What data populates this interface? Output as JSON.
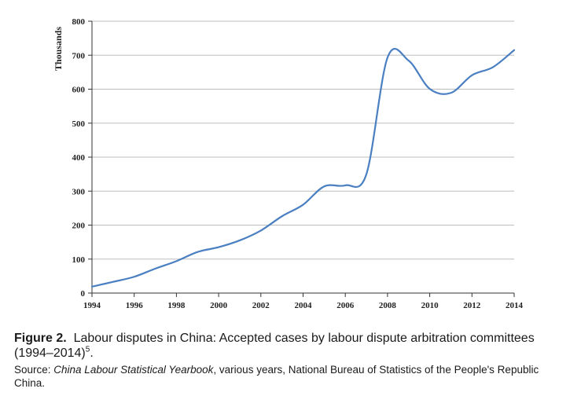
{
  "chart_data": {
    "type": "line",
    "ylabel": "Thousands",
    "xlabel": "",
    "xlim": [
      1994,
      2014
    ],
    "ylim": [
      0,
      800
    ],
    "x_ticks": [
      "1994",
      "1996",
      "1998",
      "2000",
      "2002",
      "2004",
      "2006",
      "2008",
      "2010",
      "2012",
      "2014"
    ],
    "y_ticks": [
      "0",
      "100",
      "200",
      "300",
      "400",
      "500",
      "600",
      "700",
      "800"
    ],
    "grid": "horizontal",
    "series": [
      {
        "color": "#4a7fc1",
        "x": [
          1994,
          1995,
          1996,
          1997,
          1998,
          1999,
          2000,
          2001,
          2002,
          2003,
          2004,
          2005,
          2006,
          2007,
          2008,
          2009,
          2010,
          2011,
          2012,
          2013,
          2014
        ],
        "values": [
          19,
          33,
          48,
          72,
          94,
          121,
          135,
          155,
          184,
          226,
          260,
          314,
          317,
          350,
          693,
          684,
          601,
          589,
          641,
          665,
          715
        ]
      }
    ]
  },
  "caption": {
    "figure_label": "Figure 2.",
    "title_text": "Labour disputes in China: Accepted cases by labour dispute arbitration committees (1994–2014)",
    "footnote_ref": "5",
    "title_end": ".",
    "source_label": "Source: ",
    "source_title": "China Labour Statistical Yearbook",
    "source_rest": ", various years, National Bureau of Statistics of the People's Republic China."
  }
}
